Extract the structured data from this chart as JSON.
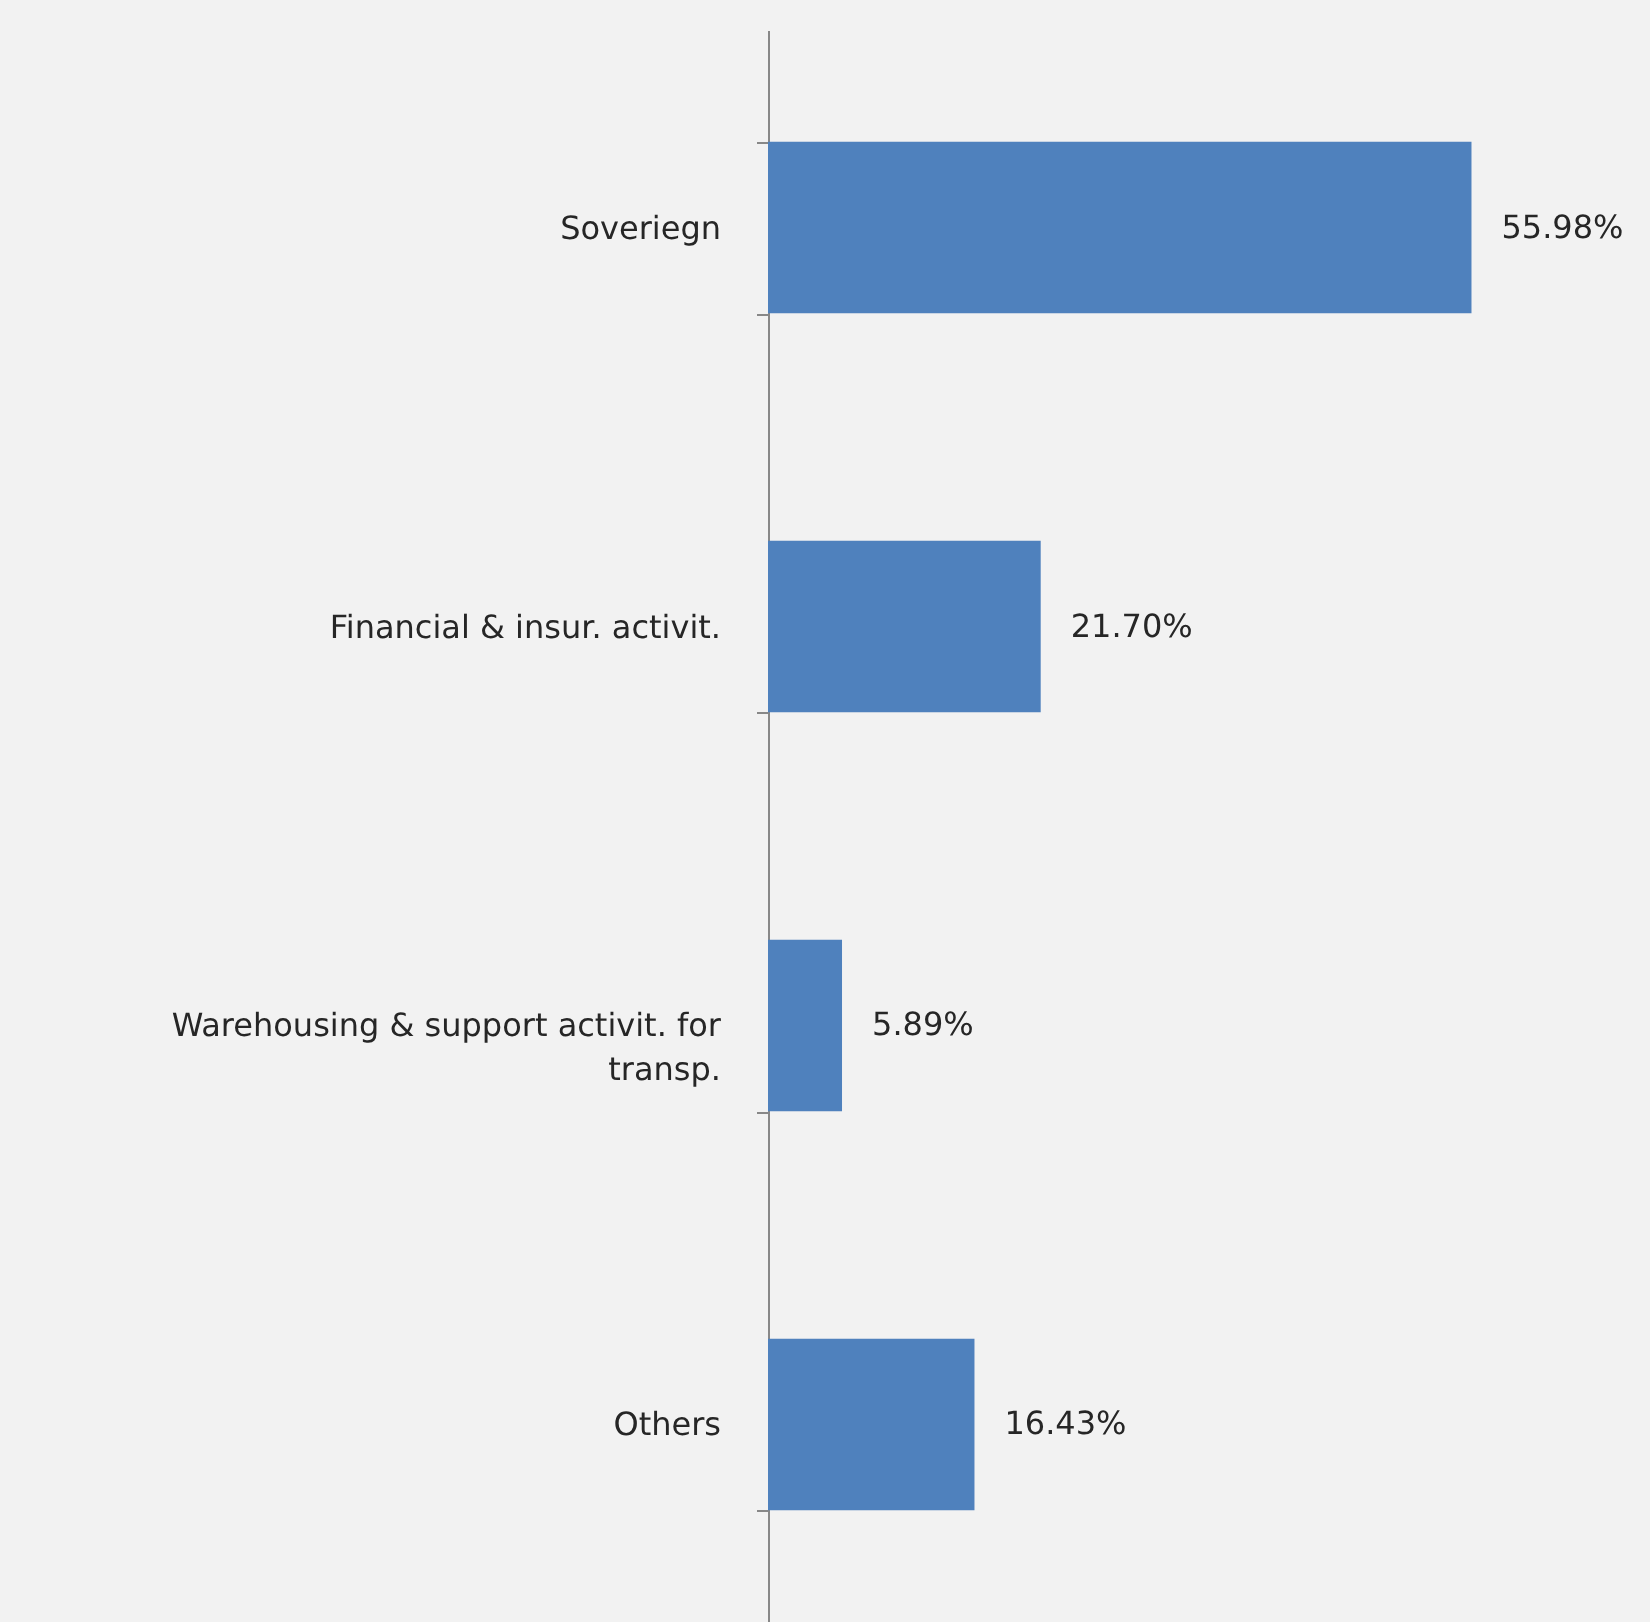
{
  "chart_data": {
    "type": "bar",
    "orientation": "horizontal",
    "categories": [
      "Soveriegn",
      "Financial & insur. activit.",
      "Warehousing & support activit. for transp.",
      "Others"
    ],
    "values": [
      55.98,
      21.7,
      5.89,
      16.43
    ],
    "value_labels": [
      "55.98%",
      "21.70%",
      "5.89%",
      "16.43%"
    ],
    "color": "#4f81bd"
  }
}
